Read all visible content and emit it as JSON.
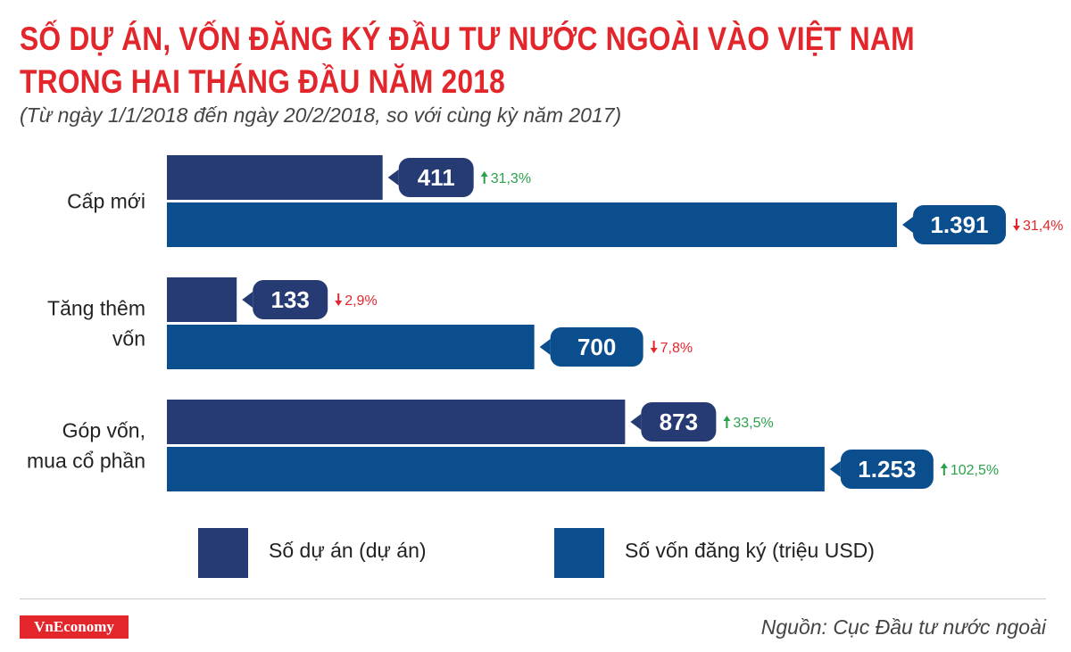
{
  "header": {
    "title_line1": "SỐ DỰ ÁN, VỐN ĐĂNG KÝ ĐẦU TƯ NƯỚC NGOÀI VÀO VIỆT NAM",
    "title_line2": "TRONG HAI THÁNG ĐẦU NĂM 2018",
    "subtitle": "(Từ ngày 1/1/2018 đến ngày 20/2/2018, so với cùng kỳ năm 2017)"
  },
  "colors": {
    "title": "#e2262b",
    "projects": "#263a73",
    "capital": "#0b4e8d",
    "up": "#2aa24a",
    "down": "#e2262b"
  },
  "chart_data": {
    "type": "bar",
    "orientation": "horizontal",
    "title": "SỐ DỰ ÁN, VỐN ĐĂNG KÝ ĐẦU TƯ NƯỚC NGOÀI VÀO VIỆT NAM TRONG HAI THÁNG ĐẦU NĂM 2018",
    "categories": [
      {
        "lines": [
          "Cấp mới"
        ]
      },
      {
        "lines": [
          "Tăng thêm",
          "vốn"
        ]
      },
      {
        "lines": [
          "Góp vốn,",
          "mua cổ phần"
        ]
      }
    ],
    "series": [
      {
        "name": "Số dự án (dự án)",
        "values": [
          411,
          133,
          873
        ],
        "labels": [
          "411",
          "133",
          "873"
        ],
        "changes": [
          {
            "dir": "up",
            "text": "31,3%"
          },
          {
            "dir": "down",
            "text": "2,9%"
          },
          {
            "dir": "up",
            "text": "33,5%"
          }
        ]
      },
      {
        "name": "Số vốn đăng ký (triệu USD)",
        "values": [
          1391,
          700,
          1253
        ],
        "labels": [
          "1.391",
          "700",
          "1.253"
        ],
        "changes": [
          {
            "dir": "down",
            "text": "31,4%"
          },
          {
            "dir": "down",
            "text": "7,8%"
          },
          {
            "dir": "up",
            "text": "102,5%"
          }
        ]
      }
    ],
    "xlim": [
      0,
      1391
    ],
    "legend": "bottom"
  },
  "legend": {
    "projects": "Số dự án (dự án)",
    "capital": "Số vốn đăng ký (triệu USD)"
  },
  "footer": {
    "logo": "VnEconomy",
    "source": "Nguồn: Cục Đầu tư nước ngoài"
  }
}
